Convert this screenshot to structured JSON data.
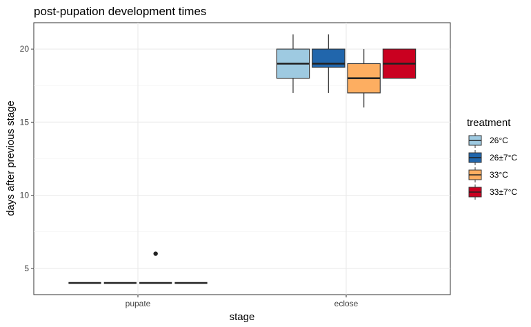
{
  "chart_data": {
    "type": "box",
    "title": "post-pupation development times",
    "xlabel": "stage",
    "ylabel": "days after previous stage",
    "categories": [
      "pupate",
      "eclose"
    ],
    "ylim": [
      3.2,
      21.8
    ],
    "yticks": [
      5,
      10,
      15,
      20
    ],
    "grid": true,
    "legend": {
      "title": "treatment",
      "position": "right"
    },
    "series": [
      {
        "name": "26°C",
        "color": "#9ecae1",
        "boxes": [
          {
            "category": "pupate",
            "min": 4,
            "q1": 4,
            "median": 4,
            "q3": 4,
            "max": 4,
            "outliers": []
          },
          {
            "category": "eclose",
            "min": 17,
            "q1": 18,
            "median": 19,
            "q3": 20,
            "max": 21,
            "outliers": []
          }
        ]
      },
      {
        "name": "26±7°C",
        "color": "#2166ac",
        "boxes": [
          {
            "category": "pupate",
            "min": 4,
            "q1": 4,
            "median": 4,
            "q3": 4,
            "max": 4,
            "outliers": []
          },
          {
            "category": "eclose",
            "min": 17,
            "q1": 18.75,
            "median": 19,
            "q3": 20,
            "max": 21,
            "outliers": []
          }
        ]
      },
      {
        "name": "33°C",
        "color": "#fdae61",
        "boxes": [
          {
            "category": "pupate",
            "min": 4,
            "q1": 4,
            "median": 4,
            "q3": 4,
            "max": 4,
            "outliers": [
              6
            ]
          },
          {
            "category": "eclose",
            "min": 16,
            "q1": 17,
            "median": 18,
            "q3": 19,
            "max": 20,
            "outliers": []
          }
        ]
      },
      {
        "name": "33±7°C",
        "color": "#ca0020",
        "boxes": [
          {
            "category": "pupate",
            "min": 4,
            "q1": 4,
            "median": 4,
            "q3": 4,
            "max": 4,
            "outliers": []
          },
          {
            "category": "eclose",
            "min": 18,
            "q1": 18,
            "median": 19,
            "q3": 20,
            "max": 20,
            "outliers": []
          }
        ]
      }
    ]
  }
}
